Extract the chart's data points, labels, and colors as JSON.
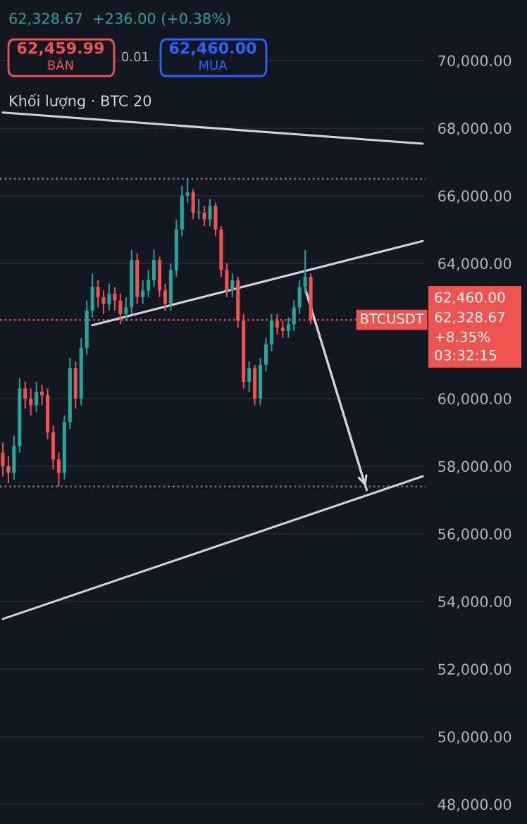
{
  "chart_data": {
    "type": "candlestick",
    "categories": [
      null,
      null,
      null,
      null,
      null,
      null,
      null,
      null,
      null,
      null,
      null,
      null,
      null,
      null,
      null,
      null,
      null,
      null,
      null,
      null,
      null,
      null,
      null,
      null,
      null,
      null,
      null,
      null,
      null,
      null,
      null,
      null,
      null,
      null,
      null,
      null,
      null,
      null,
      null,
      null,
      null,
      null,
      null,
      null,
      null,
      null,
      null,
      null,
      null,
      null,
      null,
      null,
      null,
      null,
      null,
      null,
      null,
      null,
      null,
      null,
      null,
      null,
      null,
      null,
      null,
      null,
      null,
      null,
      null,
      null,
      null,
      null,
      null,
      null,
      null,
      null
    ],
    "ohlc": [
      [
        58400,
        58700,
        57700,
        58000
      ],
      [
        58000,
        58300,
        57500,
        57800
      ],
      [
        57800,
        58900,
        57600,
        58600
      ],
      [
        58600,
        60600,
        58400,
        60300
      ],
      [
        60300,
        60500,
        59700,
        60000
      ],
      [
        60000,
        60300,
        59500,
        59800
      ],
      [
        59800,
        60500,
        59600,
        60200
      ],
      [
        60200,
        60400,
        59800,
        60100
      ],
      [
        60100,
        60300,
        58800,
        59000
      ],
      [
        59000,
        59200,
        57900,
        58200
      ],
      [
        58200,
        58400,
        57400,
        57800
      ],
      [
        57800,
        59500,
        57600,
        59300
      ],
      [
        59300,
        61200,
        59100,
        60900
      ],
      [
        60900,
        61100,
        59700,
        60000
      ],
      [
        60000,
        61800,
        59800,
        61500
      ],
      [
        61500,
        62900,
        61300,
        62600
      ],
      [
        62600,
        63700,
        62400,
        63300
      ],
      [
        63300,
        63500,
        62700,
        63000
      ],
      [
        63000,
        63200,
        62500,
        62800
      ],
      [
        62800,
        63400,
        62600,
        63100
      ],
      [
        63100,
        63300,
        62600,
        62900
      ],
      [
        62900,
        63100,
        62200,
        62500
      ],
      [
        62500,
        63000,
        62300,
        62700
      ],
      [
        62700,
        64400,
        62500,
        64100
      ],
      [
        64100,
        64300,
        62800,
        63000
      ],
      [
        63000,
        63500,
        62800,
        63200
      ],
      [
        63200,
        63800,
        63000,
        63500
      ],
      [
        63500,
        64400,
        63300,
        64100
      ],
      [
        64100,
        64200,
        63000,
        63200
      ],
      [
        63200,
        63400,
        62600,
        62800
      ],
      [
        62800,
        64000,
        62600,
        63800
      ],
      [
        63800,
        65300,
        63600,
        65000
      ],
      [
        65000,
        66300,
        64800,
        66000
      ],
      [
        66000,
        66500,
        65800,
        66100
      ],
      [
        66100,
        66200,
        65300,
        65500
      ],
      [
        65500,
        65900,
        65300,
        65500
      ],
      [
        65500,
        65700,
        65100,
        65300
      ],
      [
        65300,
        65900,
        65100,
        65700
      ],
      [
        65700,
        65800,
        64800,
        65000
      ],
      [
        65000,
        65100,
        63600,
        63800
      ],
      [
        63800,
        64000,
        63000,
        63200
      ],
      [
        63200,
        63700,
        63000,
        63500
      ],
      [
        63500,
        63600,
        62100,
        62300
      ],
      [
        62300,
        62500,
        60300,
        60500
      ],
      [
        60500,
        61100,
        60200,
        60900
      ],
      [
        60900,
        61000,
        59800,
        60000
      ],
      [
        60000,
        61200,
        59800,
        61000
      ],
      [
        61000,
        61800,
        60800,
        61600
      ],
      [
        61600,
        62500,
        61400,
        62300
      ],
      [
        62300,
        62500,
        61900,
        62100
      ],
      [
        62100,
        62300,
        61800,
        62000
      ],
      [
        62000,
        62400,
        61800,
        62200
      ],
      [
        62200,
        62900,
        62000,
        62700
      ],
      [
        62700,
        63500,
        62500,
        63300
      ],
      [
        63300,
        64400,
        63100,
        63600
      ],
      [
        63600,
        63700,
        62200,
        62328.67
      ],
      null,
      null,
      null,
      null,
      null,
      null,
      null,
      null,
      null,
      null,
      null,
      null,
      null,
      null,
      null,
      null,
      null,
      null,
      null,
      null
    ],
    "colors": [
      "#ef5350",
      "#ef5350",
      "#26a69a",
      "#26a69a",
      "#ef5350",
      "#ef5350",
      "#26a69a",
      "#ef5350",
      "#ef5350",
      "#ef5350",
      "#ef5350",
      "#26a69a",
      "#26a69a",
      "#ef5350",
      "#26a69a",
      "#26a69a",
      "#26a69a",
      "#ef5350",
      "#ef5350",
      "#26a69a",
      "#ef5350",
      "#ef5350",
      "#26a69a",
      "#26a69a",
      "#ef5350",
      "#26a69a",
      "#26a69a",
      "#26a69a",
      "#ef5350",
      "#ef5350",
      "#26a69a",
      "#26a69a",
      "#26a69a",
      "#26a69a",
      "#ef5350",
      "#26a69a",
      "#ef5350",
      "#26a69a",
      "#ef5350",
      "#ef5350",
      "#ef5350",
      "#26a69a",
      "#ef5350",
      "#ef5350",
      "#26a69a",
      "#ef5350",
      "#26a69a",
      "#26a69a",
      "#26a69a",
      "#ef5350",
      "#ef5350",
      "#26a69a",
      "#26a69a",
      "#26a69a",
      "#26a69a",
      "#ef5350",
      null,
      null,
      null,
      null,
      null,
      null,
      null,
      null,
      null,
      null,
      null,
      null,
      null,
      null,
      null,
      null,
      null,
      null,
      null,
      null
    ],
    "series": [
      {
        "type": "line",
        "color": "#d1d4dc",
        "values": [
          68460,
          null,
          null,
          null,
          null,
          null,
          null,
          null,
          null,
          null,
          null,
          null,
          null,
          null,
          null,
          null,
          null,
          null,
          null,
          null,
          null,
          null,
          null,
          null,
          null,
          null,
          null,
          null,
          null,
          null,
          null,
          null,
          null,
          null,
          null,
          null,
          null,
          null,
          null,
          null,
          null,
          null,
          null,
          null,
          null,
          null,
          null,
          null,
          null,
          null,
          null,
          null,
          null,
          null,
          null,
          null,
          null,
          null,
          null,
          null,
          null,
          null,
          null,
          null,
          null,
          null,
          null,
          null,
          null,
          null,
          null,
          null,
          null,
          null,
          null,
          67540
        ]
      },
      {
        "type": "line",
        "color": "#d1d4dc",
        "values": [
          null,
          null,
          null,
          null,
          null,
          null,
          null,
          null,
          null,
          null,
          null,
          null,
          null,
          null,
          null,
          null,
          62170,
          null,
          null,
          null,
          null,
          null,
          null,
          null,
          null,
          null,
          null,
          null,
          null,
          null,
          null,
          null,
          null,
          null,
          null,
          null,
          null,
          null,
          null,
          null,
          null,
          null,
          null,
          null,
          null,
          null,
          null,
          null,
          null,
          null,
          null,
          null,
          null,
          null,
          null,
          null,
          null,
          null,
          null,
          null,
          null,
          null,
          null,
          null,
          null,
          null,
          null,
          null,
          null,
          null,
          null,
          null,
          null,
          null,
          null,
          64660
        ]
      },
      {
        "type": "line",
        "color": "#d1d4dc",
        "values": [
          53480,
          null,
          null,
          null,
          null,
          null,
          null,
          null,
          null,
          null,
          null,
          null,
          null,
          null,
          null,
          null,
          null,
          null,
          null,
          null,
          null,
          null,
          null,
          null,
          null,
          null,
          null,
          null,
          null,
          null,
          null,
          null,
          null,
          null,
          null,
          null,
          null,
          null,
          null,
          null,
          null,
          null,
          null,
          null,
          null,
          null,
          null,
          null,
          null,
          null,
          null,
          null,
          null,
          null,
          null,
          null,
          null,
          null,
          null,
          null,
          null,
          null,
          null,
          null,
          null,
          null,
          null,
          null,
          null,
          null,
          null,
          null,
          null,
          null,
          null,
          57700
        ]
      },
      {
        "type": "line",
        "color": "#d1d4dc",
        "values": [
          null,
          null,
          null,
          null,
          null,
          null,
          null,
          null,
          null,
          null,
          null,
          null,
          null,
          null,
          null,
          null,
          null,
          null,
          null,
          null,
          null,
          null,
          null,
          null,
          null,
          null,
          null,
          null,
          null,
          null,
          null,
          null,
          null,
          null,
          null,
          null,
          null,
          null,
          null,
          null,
          null,
          null,
          null,
          null,
          null,
          null,
          null,
          null,
          null,
          null,
          null,
          null,
          null,
          null,
          63250,
          null,
          null,
          null,
          null,
          null,
          null,
          null,
          null,
          null,
          null,
          57290,
          null,
          null,
          null,
          null,
          null,
          null,
          null,
          null,
          null,
          null
        ]
      }
    ],
    "ref_lines": [
      {
        "axis": "y",
        "value": 62328.67,
        "label": "BTCUSDT",
        "color": "#ef5350",
        "line_style": "dotted"
      },
      {
        "axis": "y",
        "value": 66500,
        "color": "#787b86",
        "line_style": "dotted"
      },
      {
        "axis": "y",
        "value": 57400,
        "color": "#787b86",
        "line_style": "dotted"
      }
    ],
    "annotations": [
      "62,328.67  +236.00 (+0.38%)",
      "62,459.99",
      "BÁN",
      "0.01",
      "62,460.00",
      "MUA",
      "Khối lượng · BTC 20",
      "62,460.00",
      "62,328.67",
      "+8.35%",
      "03:32:15"
    ],
    "ylim": [
      47415,
      71790
    ],
    "yticks": [
      {
        "value": 48000,
        "label": "48,000.00"
      },
      {
        "value": 50000,
        "label": "50,000.00"
      },
      {
        "value": 52000,
        "label": "52,000.00"
      },
      {
        "value": 54000,
        "label": "54,000.00"
      },
      {
        "value": 56000,
        "label": "56,000.00"
      },
      {
        "value": 58000,
        "label": "58,000.00"
      },
      {
        "value": 60000,
        "label": "60,000.00"
      },
      {
        "value": 64000,
        "label": "64,000.00"
      },
      {
        "value": 66000,
        "label": "66,000.00"
      },
      {
        "value": 68000,
        "label": "68,000.00"
      },
      {
        "value": 70000,
        "label": "70,000.00"
      }
    ],
    "tick_labels": "y",
    "grid": "y"
  }
}
